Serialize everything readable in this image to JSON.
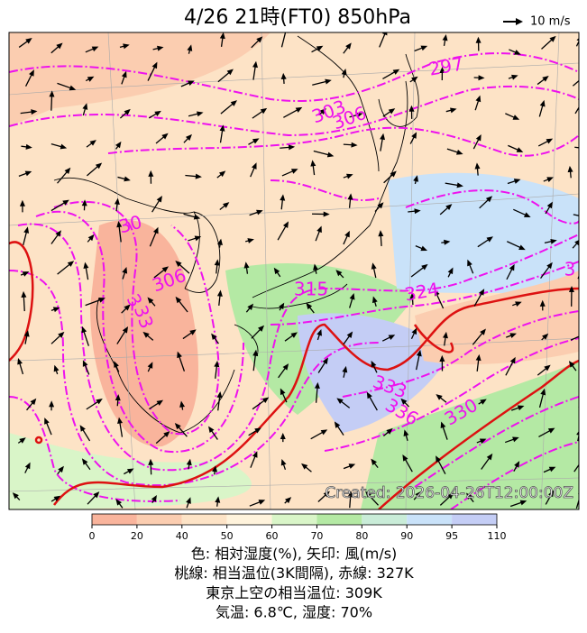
{
  "title": "4/26  21時(FT0)     850hPa",
  "wind_scale": "10 m/s",
  "contour_labels": [
    "297",
    "303",
    "306",
    "30",
    "306",
    "3",
    "33",
    "315",
    "324",
    "333",
    "336",
    "330",
    "3"
  ],
  "created": "Created: 2026-04-26T12:00:00Z",
  "colorbar": {
    "ticks": [
      0,
      20,
      40,
      50,
      60,
      70,
      80,
      90,
      95,
      110
    ],
    "colors": [
      "#f9b49c",
      "#fbcdb0",
      "#fde3c6",
      "#fff3dc",
      "#d9f5c8",
      "#b4e9a4",
      "#c9ecd8",
      "#c9e2f9",
      "#c4cdf5"
    ]
  },
  "caption": [
    "色: 相対湿度(%), 矢印: 風(m/s)",
    "桃線: 相当温位(3K間隔), 赤線: 327K",
    "東京上空の相当温位: 309K",
    "気温: 6.8℃, 湿度: 70%"
  ]
}
